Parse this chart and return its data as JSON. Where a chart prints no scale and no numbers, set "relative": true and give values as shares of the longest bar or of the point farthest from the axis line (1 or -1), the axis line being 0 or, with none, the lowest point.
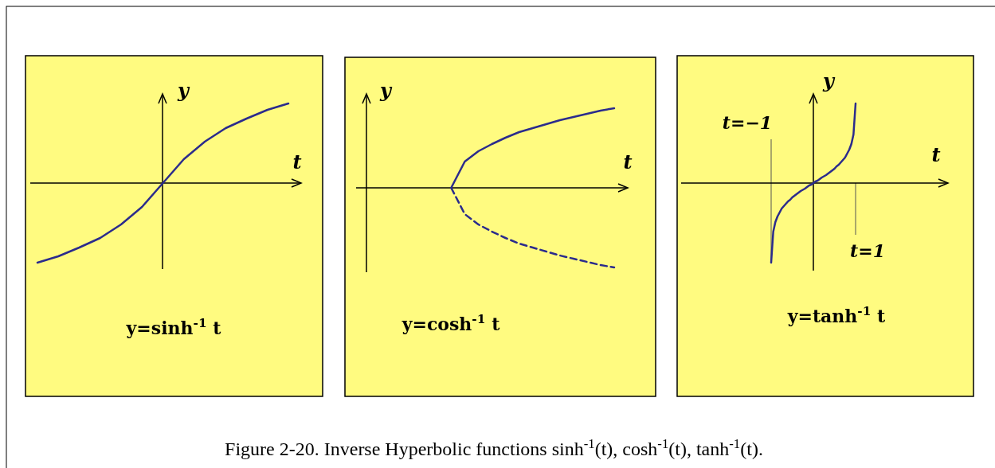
{
  "chart_data": [
    {
      "type": "line",
      "relative": true,
      "xlabel": "t",
      "ylabel": "y",
      "categories": [
        null,
        null,
        null,
        null,
        null,
        null,
        null,
        null,
        null,
        null,
        null,
        null,
        null
      ],
      "series": [
        {
          "color": "#2b2b8c",
          "values": [
            -1,
            -0.92,
            -0.81,
            -0.69,
            -0.52,
            -0.3,
            0,
            0.3,
            0.52,
            0.69,
            0.81,
            0.92,
            1
          ]
        }
      ],
      "annotations": [
        "y=sinh$^{-1}$ t",
        "Figure 2-20. Inverse Hyperbolic functions sinh$^{-1}$(t),  cosh$^{-1}$(t),  tanh$^{-1}$(t)."
      ]
    },
    {
      "type": "line",
      "relative": true,
      "xlabel": "t",
      "ylabel": "y",
      "categories": [
        null,
        null,
        null,
        null,
        null,
        null,
        null,
        null,
        null,
        null,
        null,
        null,
        null,
        null,
        null,
        null,
        null,
        null,
        null,
        null,
        null
      ],
      "series": [
        {
          "color": "#2b2b8c",
          "line_style": "solid",
          "values": [
            null,
            null,
            null,
            null,
            null,
            null,
            null,
            0,
            0.33,
            0.46,
            0.55,
            0.63,
            0.7,
            0.75,
            0.8,
            0.85,
            0.89,
            0.93,
            0.97,
            1,
            null
          ]
        },
        {
          "color": "#2b2b8c",
          "line_style": "dashed",
          "values": [
            null,
            null,
            null,
            null,
            null,
            null,
            null,
            0,
            -0.33,
            -0.46,
            -0.55,
            -0.63,
            -0.7,
            -0.75,
            -0.8,
            -0.85,
            -0.89,
            -0.93,
            -0.97,
            -1,
            null
          ]
        }
      ],
      "annotations": [
        "y=cosh$^{-1}$ t"
      ]
    },
    {
      "type": "line",
      "relative": true,
      "xlabel": "t",
      "ylabel": "y",
      "categories": [
        null,
        null,
        null,
        null,
        null,
        null,
        null,
        null,
        null,
        null,
        null,
        null,
        null,
        null,
        null,
        null,
        null,
        null,
        null,
        null,
        null,
        null,
        null,
        null,
        null,
        null,
        null,
        null,
        null,
        null,
        null,
        null,
        null,
        null,
        null,
        null,
        null,
        null,
        null,
        null,
        null
      ],
      "series": [
        {
          "color": "#2b2b8c",
          "values": [
            -1,
            -0.61,
            -0.49,
            -0.42,
            -0.37,
            -0.32,
            -0.29,
            -0.26,
            -0.23,
            -0.21,
            -0.18,
            -0.16,
            -0.14,
            -0.12,
            -0.1,
            -0.085,
            -0.07,
            -0.05,
            -0.03,
            -0.02,
            0,
            0.02,
            0.03,
            0.05,
            0.07,
            0.085,
            0.1,
            0.12,
            0.14,
            0.16,
            0.18,
            0.21,
            0.23,
            0.26,
            0.29,
            0.32,
            0.37,
            0.42,
            0.49,
            0.61,
            1
          ]
        }
      ],
      "annotations": [
        "y=tanh$^{-1}$ t",
        "t=−1",
        "t=1"
      ]
    }
  ]
}
